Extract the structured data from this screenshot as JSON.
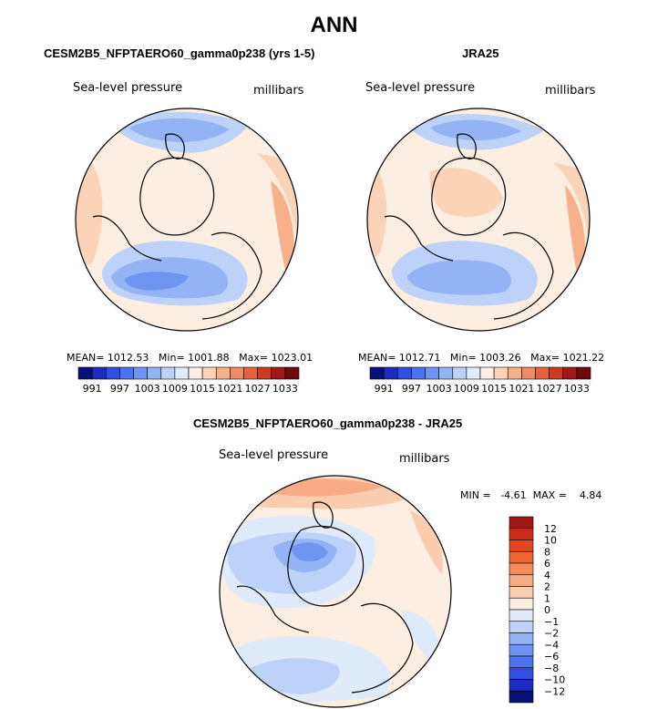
{
  "figure": {
    "title": "ANN",
    "colors": {
      "land_outline": "#000000",
      "disk_edge": "#000000"
    }
  },
  "chart_data": [
    {
      "type": "polar_contour_map",
      "title": "CESM2B5_NFPTAERO60_gamma0p238 (yrs 1-5)",
      "variable": "Sea-level pressure",
      "units": "millibars",
      "stats": {
        "mean_label": "MEAN=",
        "mean": "1012.53",
        "min_label": "Min=",
        "min": "1001.88",
        "max_label": "Max=",
        "max": "1023.01"
      },
      "colorbar": {
        "orientation": "horizontal",
        "levels": [
          991,
          994,
          997,
          1000,
          1003,
          1006,
          1009,
          1012,
          1015,
          1018,
          1021,
          1024,
          1027,
          1030,
          1033
        ],
        "tick_labels": [
          "991",
          "997",
          "1003",
          "1009",
          "1015",
          "1021",
          "1027",
          "1033"
        ],
        "colors": [
          "#08107a",
          "#1c2cc0",
          "#2f4fe0",
          "#4a74ee",
          "#6f95f0",
          "#94b3f4",
          "#bcd2f8",
          "#dfeafb",
          "#fdeee2",
          "#fbd3b6",
          "#f7b08a",
          "#f08a62",
          "#e4623e",
          "#cc3a22",
          "#a21816",
          "#6e0a0a"
        ]
      }
    },
    {
      "type": "polar_contour_map",
      "title": "JRA25",
      "variable": "Sea-level pressure",
      "units": "millibars",
      "stats": {
        "mean_label": "MEAN=",
        "mean": "1012.71",
        "min_label": "Min=",
        "min": "1003.26",
        "max_label": "Max=",
        "max": "1021.22"
      },
      "colorbar": {
        "orientation": "horizontal",
        "levels": [
          991,
          994,
          997,
          1000,
          1003,
          1006,
          1009,
          1012,
          1015,
          1018,
          1021,
          1024,
          1027,
          1030,
          1033
        ],
        "tick_labels": [
          "991",
          "997",
          "1003",
          "1009",
          "1015",
          "1021",
          "1027",
          "1033"
        ],
        "colors": [
          "#08107a",
          "#1c2cc0",
          "#2f4fe0",
          "#4a74ee",
          "#6f95f0",
          "#94b3f4",
          "#bcd2f8",
          "#dfeafb",
          "#fdeee2",
          "#fbd3b6",
          "#f7b08a",
          "#f08a62",
          "#e4623e",
          "#cc3a22",
          "#a21816",
          "#6e0a0a"
        ]
      }
    },
    {
      "type": "polar_contour_map",
      "title": "CESM2B5_NFPTAERO60_gamma0p238 - JRA25",
      "variable": "Sea-level pressure",
      "units": "millibars",
      "stats": {
        "min_label": "MIN =",
        "min": "-4.61",
        "max_label": "MAX =",
        "max": "4.84"
      },
      "colorbar": {
        "orientation": "vertical",
        "levels": [
          -12,
          -10,
          -8,
          -6,
          -4,
          -2,
          -1,
          0,
          1,
          2,
          4,
          6,
          8,
          10,
          12
        ],
        "tick_labels": [
          "12",
          "10",
          "8",
          "6",
          "4",
          "2",
          "1",
          "0",
          "−1",
          "−2",
          "−4",
          "−6",
          "−8",
          "−10",
          "−12"
        ],
        "colors_top_to_bottom": [
          "#a21816",
          "#cc2a18",
          "#e4461e",
          "#f0642e",
          "#f58a5a",
          "#f8ac86",
          "#fbcdb0",
          "#fdeee2",
          "#dfeafb",
          "#bcd2f8",
          "#94b3f4",
          "#6f95f0",
          "#4a74ee",
          "#2f4fe0",
          "#1c2cc0",
          "#08107a"
        ]
      }
    }
  ]
}
